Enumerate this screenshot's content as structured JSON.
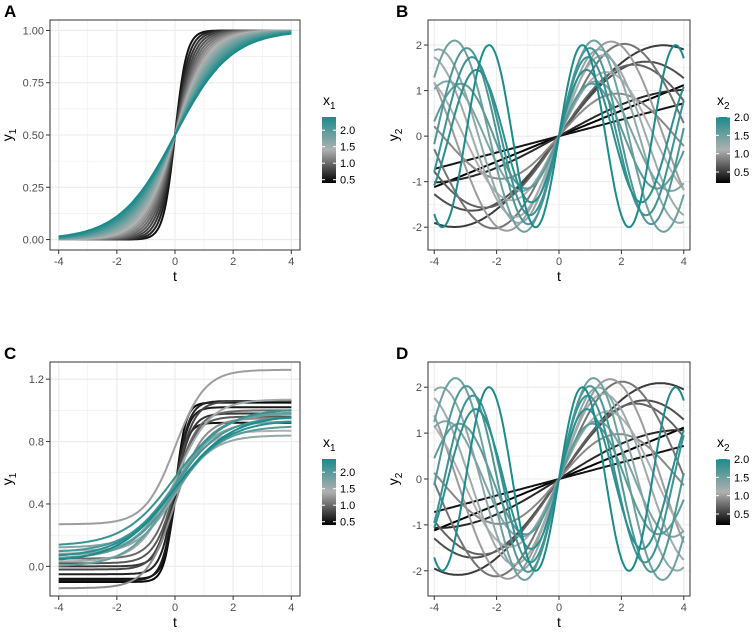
{
  "colors": {
    "low": "#000000",
    "mid": "#b0b0b0",
    "high": "#1b8b8b",
    "panel_bg": "#ffffff",
    "grid": "#ebebeb",
    "border": "#333333"
  },
  "chart_data": [
    {
      "type": "line",
      "panel_label": "A",
      "xlabel": "t",
      "ylabel_main": "y",
      "ylabel_sub": "1",
      "xlim": [
        -4.3,
        4.3
      ],
      "ylim": [
        -0.05,
        1.05
      ],
      "xticks": [
        -4,
        -2,
        0,
        2,
        4
      ],
      "xtick_labels": [
        "-4",
        "-2",
        "0",
        "2",
        "4"
      ],
      "yticks": [
        0,
        0.25,
        0.5,
        0.75,
        1
      ],
      "ytick_labels": [
        "0.00",
        "0.25",
        "0.50",
        "0.75",
        "1.00"
      ],
      "legend": {
        "title_main": "x",
        "title_sub": "1",
        "ticks": [
          0.5,
          1.0,
          1.5,
          2.0
        ],
        "tick_labels": [
          "0.5",
          "1.0",
          "1.5",
          "2.0"
        ],
        "range": [
          0.4,
          2.4
        ]
      },
      "function": "sigmoid",
      "series_params": [
        0.5,
        0.6,
        0.7,
        0.8,
        0.9,
        1.0,
        1.1,
        1.2,
        1.3,
        1.4,
        1.5,
        1.6,
        1.7,
        1.8,
        1.9,
        2.0,
        2.1,
        2.2,
        2.3,
        2.4
      ]
    },
    {
      "type": "line",
      "panel_label": "B",
      "xlabel": "t",
      "ylabel_main": "y",
      "ylabel_sub": "2",
      "xlim": [
        -4.2,
        4.2
      ],
      "ylim": [
        -2.5,
        2.55
      ],
      "xticks": [
        -4,
        -2,
        0,
        2,
        4
      ],
      "xtick_labels": [
        "-4",
        "-2",
        "0",
        "2",
        "4"
      ],
      "yticks": [
        -2,
        -1,
        0,
        1,
        2
      ],
      "ytick_labels": [
        "-2",
        "-1",
        "0",
        "1",
        "2"
      ],
      "legend": {
        "title_main": "x",
        "title_sub": "2",
        "ticks": [
          0.5,
          1.0,
          1.5,
          2.0
        ],
        "tick_labels": [
          "0.5",
          "1.0",
          "1.5",
          "2.0"
        ],
        "range": [
          0.2,
          2.0
        ]
      },
      "function": "sine",
      "series_params": [
        0.2,
        0.3,
        0.4,
        0.5,
        0.6,
        0.7,
        0.8,
        0.9,
        1.0,
        1.1,
        1.2,
        1.3,
        1.4,
        1.5,
        1.6,
        1.7,
        1.8,
        1.9,
        2.0
      ]
    },
    {
      "type": "line",
      "panel_label": "C",
      "xlabel": "t",
      "ylabel_main": "y",
      "ylabel_sub": "1",
      "xlim": [
        -4.3,
        4.3
      ],
      "ylim": [
        -0.19,
        1.31
      ],
      "xticks": [
        -4,
        -2,
        0,
        2,
        4
      ],
      "xtick_labels": [
        "-4",
        "-2",
        "0",
        "2",
        "4"
      ],
      "yticks": [
        0,
        0.4,
        0.8,
        1.2
      ],
      "ytick_labels": [
        "0.0",
        "0.4",
        "0.8",
        "1.2"
      ],
      "legend": {
        "title_main": "x",
        "title_sub": "1",
        "ticks": [
          0.5,
          1.0,
          1.5,
          2.0
        ],
        "tick_labels": [
          "0.5",
          "1.0",
          "1.5",
          "2.0"
        ],
        "range": [
          0.4,
          2.4
        ]
      },
      "function": "sigmoid_noisy",
      "series": [
        {
          "p": 0.45,
          "lo": -0.1,
          "hi": 1.05
        },
        {
          "p": 0.5,
          "lo": -0.08,
          "hi": 0.92
        },
        {
          "p": 0.55,
          "lo": -0.09,
          "hi": 1.02
        },
        {
          "p": 0.6,
          "lo": -0.05,
          "hi": 1.06
        },
        {
          "p": 0.7,
          "lo": 0.0,
          "hi": 0.98
        },
        {
          "p": 0.8,
          "lo": -0.02,
          "hi": 1.06
        },
        {
          "p": 0.9,
          "lo": 0.02,
          "hi": 0.96
        },
        {
          "p": 1.0,
          "lo": 0.05,
          "hi": 1.0
        },
        {
          "p": 1.2,
          "lo": -0.14,
          "hi": 0.95
        },
        {
          "p": 1.3,
          "lo": 0.27,
          "hi": 1.26
        },
        {
          "p": 1.4,
          "lo": 0.1,
          "hi": 0.87
        },
        {
          "p": 1.5,
          "lo": 0.03,
          "hi": 1.07
        },
        {
          "p": 1.6,
          "lo": 0.08,
          "hi": 0.84
        },
        {
          "p": 1.7,
          "lo": 0.12,
          "hi": 0.93
        },
        {
          "p": 1.8,
          "lo": 0.07,
          "hi": 0.98
        },
        {
          "p": 1.9,
          "lo": 0.0,
          "hi": 0.99
        },
        {
          "p": 2.0,
          "lo": 0.05,
          "hi": 0.9
        },
        {
          "p": 2.1,
          "lo": 0.09,
          "hi": 0.96
        },
        {
          "p": 2.2,
          "lo": 0.13,
          "hi": 1.01
        },
        {
          "p": 2.3,
          "lo": 0.06,
          "hi": 0.94
        },
        {
          "p": 2.4,
          "lo": 0.03,
          "hi": 0.97
        }
      ]
    },
    {
      "type": "line",
      "panel_label": "D",
      "xlabel": "t",
      "ylabel_main": "y",
      "ylabel_sub": "2",
      "xlim": [
        -4.2,
        4.2
      ],
      "ylim": [
        -2.55,
        2.55
      ],
      "xticks": [
        -4,
        -2,
        0,
        2,
        4
      ],
      "xtick_labels": [
        "-4",
        "-2",
        "0",
        "2",
        "4"
      ],
      "yticks": [
        -2,
        -1,
        0,
        1,
        2
      ],
      "ytick_labels": [
        "-2",
        "-1",
        "0",
        "1",
        "2"
      ],
      "legend": {
        "title_main": "x",
        "title_sub": "2",
        "ticks": [
          0.5,
          1.0,
          1.5,
          2.0
        ],
        "tick_labels": [
          "0.5",
          "1.0",
          "1.5",
          "2.0"
        ],
        "range": [
          0.2,
          2.0
        ]
      },
      "function": "sine_noisy",
      "series_params": [
        0.2,
        0.3,
        0.4,
        0.5,
        0.6,
        0.7,
        0.8,
        0.9,
        1.0,
        1.1,
        1.2,
        1.3,
        1.4,
        1.5,
        1.6,
        1.7,
        1.8,
        1.9,
        2.0
      ]
    }
  ]
}
